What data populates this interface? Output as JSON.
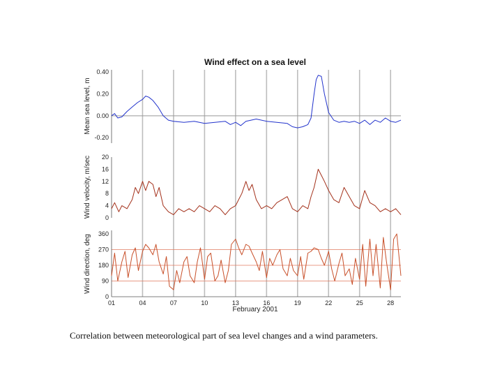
{
  "caption": "Correlation between meteorological part of sea level changes and a wind parameters.",
  "colors": {
    "sea_level": "#2233cc",
    "wind_velocity": "#a3301a",
    "wind_direction": "#c8502a",
    "ref_line": "#e07a5f",
    "vgrid": "#bdbdbd"
  },
  "chart_data": {
    "type": "line",
    "title": "Wind effect on a sea level",
    "xlabel": "February 2001",
    "x_ticks": [
      "01",
      "04",
      "07",
      "10",
      "13",
      "16",
      "19",
      "22",
      "25",
      "28"
    ],
    "x_tick_values": [
      1,
      4,
      7,
      10,
      13,
      16,
      19,
      22,
      25,
      28
    ],
    "xlim": [
      1,
      29
    ],
    "grid": "vertical lines at x ticks",
    "panels": [
      {
        "id": "sea_level",
        "ylabel": "Mean sea level, m",
        "ylim": [
          -0.25,
          0.42
        ],
        "y_ticks": [
          "0.40",
          "0.20",
          "0.00",
          "-0.20"
        ],
        "y_tick_values": [
          0.4,
          0.2,
          0.0,
          -0.2
        ],
        "ref_lines": [
          0.0
        ],
        "series": [
          {
            "x": [
              1.0,
              1.3,
              1.6,
              2.0,
              2.5,
              3.0,
              3.5,
              4.0,
              4.3,
              4.6,
              5.0,
              5.5,
              6.0,
              6.5,
              7.0,
              8.0,
              9.0,
              10.0,
              11.0,
              12.0,
              12.5,
              13.0,
              13.5,
              14.0,
              15.0,
              16.0,
              17.0,
              18.0,
              18.5,
              19.0,
              19.5,
              20.0,
              20.3,
              20.6,
              20.8,
              21.0,
              21.3,
              21.6,
              22.0,
              22.5,
              23.0,
              23.5,
              24.0,
              24.5,
              25.0,
              25.5,
              26.0,
              26.5,
              27.0,
              27.5,
              28.0,
              28.5,
              29.0
            ],
            "y": [
              0.0,
              0.02,
              -0.02,
              -0.01,
              0.04,
              0.08,
              0.12,
              0.15,
              0.18,
              0.17,
              0.14,
              0.08,
              0.0,
              -0.04,
              -0.05,
              -0.06,
              -0.05,
              -0.07,
              -0.06,
              -0.05,
              -0.08,
              -0.06,
              -0.09,
              -0.05,
              -0.03,
              -0.05,
              -0.06,
              -0.07,
              -0.1,
              -0.11,
              -0.1,
              -0.08,
              -0.02,
              0.2,
              0.33,
              0.37,
              0.36,
              0.2,
              0.03,
              -0.04,
              -0.06,
              -0.05,
              -0.06,
              -0.05,
              -0.07,
              -0.04,
              -0.08,
              -0.04,
              -0.06,
              -0.02,
              -0.05,
              -0.06,
              -0.04
            ]
          }
        ]
      },
      {
        "id": "wind_velocity",
        "ylabel": "Wind velocity, m/sec",
        "ylim": [
          0,
          20
        ],
        "y_ticks": [
          "20",
          "16",
          "12",
          "8",
          "4",
          "0"
        ],
        "y_tick_values": [
          20,
          16,
          12,
          8,
          4,
          0
        ],
        "ref_lines": [],
        "series": [
          {
            "x": [
              1.0,
              1.3,
              1.7,
              2.0,
              2.5,
              3.0,
              3.3,
              3.6,
              4.0,
              4.3,
              4.6,
              5.0,
              5.3,
              5.6,
              6.0,
              6.5,
              7.0,
              7.5,
              8.0,
              8.5,
              9.0,
              9.5,
              10.0,
              10.5,
              11.0,
              11.5,
              12.0,
              12.5,
              13.0,
              13.3,
              13.6,
              14.0,
              14.3,
              14.6,
              15.0,
              15.5,
              16.0,
              16.5,
              17.0,
              17.5,
              18.0,
              18.5,
              19.0,
              19.5,
              20.0,
              20.3,
              20.6,
              21.0,
              21.3,
              21.6,
              22.0,
              22.5,
              23.0,
              23.5,
              24.0,
              24.5,
              25.0,
              25.5,
              26.0,
              26.5,
              27.0,
              27.5,
              28.0,
              28.5,
              29.0
            ],
            "y": [
              3,
              5,
              2,
              4,
              3,
              6,
              10,
              8,
              12,
              9,
              12,
              11,
              7,
              10,
              4,
              2,
              1,
              3,
              2,
              3,
              2,
              4,
              3,
              2,
              4,
              3,
              1,
              3,
              4,
              6,
              8,
              12,
              9,
              11,
              6,
              3,
              4,
              3,
              5,
              6,
              7,
              3,
              2,
              4,
              3,
              7,
              10,
              16,
              14,
              12,
              9,
              6,
              5,
              10,
              7,
              4,
              3,
              9,
              5,
              4,
              2,
              3,
              2,
              3,
              1
            ]
          }
        ]
      },
      {
        "id": "wind_direction",
        "ylabel": "Wind direction, deg",
        "ylim": [
          0,
          380
        ],
        "y_ticks": [
          "360",
          "270",
          "180",
          "90",
          "0"
        ],
        "y_tick_values": [
          360,
          270,
          180,
          90,
          0
        ],
        "ref_lines": [
          270,
          180,
          90
        ],
        "series": [
          {
            "x": [
              1.0,
              1.3,
              1.6,
              2.0,
              2.3,
              2.6,
              3.0,
              3.3,
              3.6,
              4.0,
              4.3,
              4.6,
              5.0,
              5.3,
              5.6,
              6.0,
              6.3,
              6.6,
              7.0,
              7.3,
              7.6,
              8.0,
              8.3,
              8.6,
              9.0,
              9.3,
              9.6,
              10.0,
              10.3,
              10.6,
              11.0,
              11.3,
              11.6,
              12.0,
              12.3,
              12.6,
              13.0,
              13.3,
              13.6,
              14.0,
              14.3,
              14.6,
              15.0,
              15.3,
              15.6,
              16.0,
              16.3,
              16.6,
              17.0,
              17.3,
              17.6,
              18.0,
              18.3,
              18.6,
              19.0,
              19.3,
              19.6,
              20.0,
              20.3,
              20.6,
              21.0,
              21.3,
              21.6,
              22.0,
              22.3,
              22.6,
              23.0,
              23.3,
              23.6,
              24.0,
              24.3,
              24.6,
              25.0,
              25.3,
              25.6,
              26.0,
              26.3,
              26.6,
              27.0,
              27.3,
              27.6,
              28.0,
              28.3,
              28.6,
              29.0
            ],
            "y": [
              120,
              250,
              90,
              200,
              260,
              110,
              240,
              280,
              150,
              260,
              300,
              280,
              240,
              300,
              200,
              130,
              230,
              60,
              40,
              150,
              80,
              200,
              230,
              120,
              80,
              200,
              280,
              100,
              230,
              250,
              90,
              120,
              210,
              80,
              150,
              300,
              330,
              280,
              240,
              300,
              290,
              250,
              200,
              150,
              260,
              110,
              220,
              180,
              240,
              270,
              160,
              120,
              220,
              150,
              120,
              230,
              100,
              250,
              260,
              280,
              270,
              220,
              180,
              260,
              160,
              90,
              190,
              250,
              120,
              160,
              70,
              220,
              100,
              300,
              60,
              330,
              120,
              300,
              50,
              340,
              200,
              40,
              330,
              360,
              120
            ]
          }
        ]
      }
    ]
  }
}
